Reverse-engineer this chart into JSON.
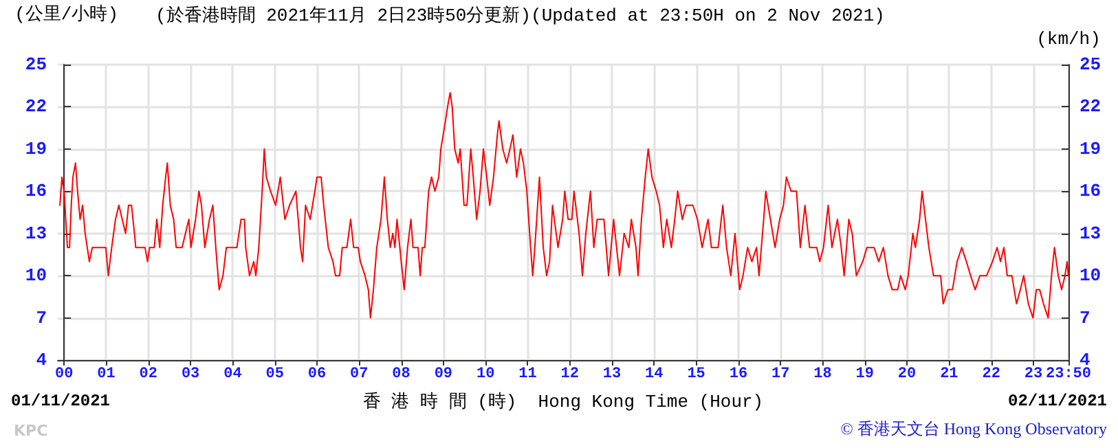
{
  "chart_data": {
    "type": "line",
    "title": "(於香港時間 2021年11月 2日23時50分更新)(Updated at 23:50H on 2 Nov 2021)",
    "xlabel": "香 港 時 間 (時)  Hong Kong Time (Hour)",
    "ylabel": "(公里/小時)",
    "y2label": "(km/h)",
    "annotations": [
      "01/11/2021",
      "02/11/2021",
      "KPC",
      "© 香港天文台 Hong Kong Observatory"
    ],
    "x": [
      -0.1,
      -0.05,
      0,
      0.02,
      0.08,
      0.13,
      0.17,
      0.21,
      0.27,
      0.32,
      0.38,
      0.44,
      0.5,
      0.6,
      0.67,
      0.99,
      1.05,
      1.13,
      1.22,
      1.3,
      1.38,
      1.46,
      1.53,
      1.6,
      1.67,
      1.7,
      1.92,
      1.98,
      2.03,
      2.14,
      2.2,
      2.27,
      2.34,
      2.41,
      2.45,
      2.52,
      2.6,
      2.66,
      2.8,
      2.88,
      2.96,
      3.01,
      3.12,
      3.2,
      3.26,
      3.34,
      3.45,
      3.53,
      3.6,
      3.68,
      3.77,
      3.85,
      4.1,
      4.2,
      4.28,
      4.31,
      4.4,
      4.5,
      4.55,
      4.62,
      4.7,
      4.75,
      4.8,
      4.9,
      5.02,
      5.13,
      5.24,
      5.35,
      5.5,
      5.61,
      5.66,
      5.73,
      5.84,
      5.95,
      6.0,
      6.1,
      6.16,
      6.27,
      6.38,
      6.44,
      6.54,
      6.6,
      6.71,
      6.8,
      6.87,
      6.98,
      7.03,
      7.14,
      7.22,
      7.27,
      7.34,
      7.42,
      7.52,
      7.6,
      7.67,
      7.74,
      7.8,
      7.85,
      7.9,
      8.0,
      8.07,
      8.15,
      8.23,
      8.28,
      8.4,
      8.45,
      8.5,
      8.56,
      8.65,
      8.72,
      8.8,
      8.89,
      8.94,
      9.05,
      9.1,
      9.16,
      9.21,
      9.27,
      9.35,
      9.4,
      9.49,
      9.56,
      9.65,
      9.71,
      9.79,
      9.87,
      9.95,
      10.03,
      10.1,
      10.19,
      10.28,
      10.32,
      10.41,
      10.5,
      10.58,
      10.65,
      10.74,
      10.83,
      10.9,
      10.98,
      11.07,
      11.12,
      11.17,
      11.28,
      11.37,
      11.45,
      11.52,
      11.59,
      11.72,
      11.83,
      11.88,
      11.96,
      12.05,
      12.1,
      12.22,
      12.3,
      12.38,
      12.49,
      12.57,
      12.65,
      12.81,
      12.92,
      13.04,
      13.18,
      13.29,
      13.4,
      13.46,
      13.57,
      13.62,
      13.7,
      13.79,
      13.86,
      13.95,
      14.05,
      14.13,
      14.22,
      14.3,
      14.41,
      14.49,
      14.56,
      14.67,
      14.76,
      14.92,
      15.03,
      15.14,
      15.28,
      15.36,
      15.52,
      15.63,
      15.72,
      15.82,
      15.92,
      16.03,
      16.11,
      16.22,
      16.32,
      16.43,
      16.49,
      16.6,
      16.65,
      16.76,
      16.87,
      16.98,
      17.07,
      17.14,
      17.25,
      17.38,
      17.47,
      17.58,
      17.69,
      17.86,
      17.93,
      18.02,
      18.13,
      18.22,
      18.35,
      18.44,
      18.51,
      18.62,
      18.7,
      18.8,
      18.95,
      19.05,
      19.22,
      19.33,
      19.44,
      19.55,
      19.65,
      19.78,
      19.85,
      19.96,
      20.03,
      20.14,
      20.2,
      20.3,
      20.36,
      20.44,
      20.52,
      20.63,
      20.8,
      20.86,
      20.97,
      21.08,
      21.19,
      21.3,
      21.41,
      21.51,
      21.62,
      21.73,
      21.89,
      22.03,
      22.14,
      22.22,
      22.3,
      22.38,
      22.49,
      22.6,
      22.69,
      22.77,
      22.88,
      22.99,
      23.07,
      23.15,
      23.24,
      23.35,
      23.43,
      23.5,
      23.59,
      23.67,
      23.75,
      23.8,
      23.83
    ],
    "series": [
      {
        "color": "#ff0000",
        "values": [
          15,
          17,
          16,
          15,
          12,
          12,
          15,
          17,
          18,
          16,
          14,
          15,
          13,
          11,
          12,
          12,
          10,
          12,
          14,
          15,
          14,
          13,
          15,
          15,
          13,
          12,
          12,
          11,
          12,
          12,
          14,
          12,
          15,
          17,
          18,
          15,
          14,
          12,
          12,
          13,
          14,
          12,
          14,
          16,
          15,
          12,
          14,
          15,
          12,
          9,
          10,
          12,
          12,
          14,
          14,
          12,
          10,
          11,
          10,
          12,
          16,
          19,
          17,
          16,
          15,
          17,
          14,
          15,
          16,
          12,
          11,
          15,
          14,
          16,
          17,
          17,
          15,
          12,
          11,
          10,
          10,
          12,
          12,
          14,
          12,
          12,
          11,
          10,
          9,
          7,
          9,
          12,
          14,
          17,
          14,
          12,
          13,
          12,
          14,
          11,
          9,
          12,
          14,
          12,
          12,
          10,
          12,
          12,
          16,
          17,
          16,
          17,
          19,
          21,
          22,
          23,
          22,
          19,
          18,
          19,
          15,
          15,
          19,
          17,
          14,
          16,
          19,
          17,
          15,
          17,
          20,
          21,
          19,
          18,
          19,
          20,
          17,
          19,
          18,
          16,
          12,
          10,
          12,
          17,
          12,
          10,
          11,
          15,
          12,
          14,
          16,
          14,
          14,
          16,
          13,
          10,
          13,
          16,
          12,
          14,
          14,
          10,
          14,
          10,
          13,
          12,
          14,
          12,
          10,
          14,
          17,
          19,
          17,
          16,
          15,
          12,
          14,
          12,
          14,
          16,
          14,
          15,
          15,
          14,
          12,
          14,
          12,
          12,
          15,
          12,
          10,
          13,
          9,
          10,
          12,
          11,
          12,
          10,
          14,
          16,
          14,
          12,
          14,
          15,
          17,
          16,
          16,
          12,
          15,
          12,
          12,
          11,
          12,
          15,
          12,
          14,
          12,
          10,
          14,
          13,
          10,
          11,
          12,
          12,
          11,
          12,
          10,
          9,
          9,
          10,
          9,
          10,
          13,
          12,
          14,
          16,
          14,
          12,
          10,
          10,
          8,
          9,
          9,
          11,
          12,
          11,
          10,
          9,
          10,
          10,
          11,
          12,
          11,
          12,
          10,
          10,
          8,
          9,
          10,
          8,
          7,
          9,
          9,
          8,
          7,
          10,
          12,
          10,
          9,
          10,
          11,
          10
        ]
      }
    ],
    "xlim": [
      -0.15,
      23.833
    ],
    "xticks": [
      {
        "value": 0,
        "label": "00"
      },
      {
        "value": 1,
        "label": "01"
      },
      {
        "value": 2,
        "label": "02"
      },
      {
        "value": 3,
        "label": "03"
      },
      {
        "value": 4,
        "label": "04"
      },
      {
        "value": 5,
        "label": "05"
      },
      {
        "value": 6,
        "label": "06"
      },
      {
        "value": 7,
        "label": "07"
      },
      {
        "value": 8,
        "label": "08"
      },
      {
        "value": 9,
        "label": "09"
      },
      {
        "value": 10,
        "label": "10"
      },
      {
        "value": 11,
        "label": "11"
      },
      {
        "value": 12,
        "label": "12"
      },
      {
        "value": 13,
        "label": "13"
      },
      {
        "value": 14,
        "label": "14"
      },
      {
        "value": 15,
        "label": "15"
      },
      {
        "value": 16,
        "label": "16"
      },
      {
        "value": 17,
        "label": "17"
      },
      {
        "value": 18,
        "label": "18"
      },
      {
        "value": 19,
        "label": "19"
      },
      {
        "value": 20,
        "label": "20"
      },
      {
        "value": 21,
        "label": "21"
      },
      {
        "value": 22,
        "label": "22"
      },
      {
        "value": 23,
        "label": "23"
      },
      {
        "value": 23.833,
        "label": "23:50"
      }
    ],
    "ylim": [
      4,
      25
    ],
    "yticks": [
      4,
      7,
      10,
      13,
      16,
      19,
      22,
      25
    ],
    "y2lim": [
      4,
      25
    ],
    "y2ticks": [
      4,
      7,
      10,
      13,
      16,
      19,
      22,
      25
    ],
    "grid": true,
    "marker": "none",
    "line_style": "solid"
  }
}
